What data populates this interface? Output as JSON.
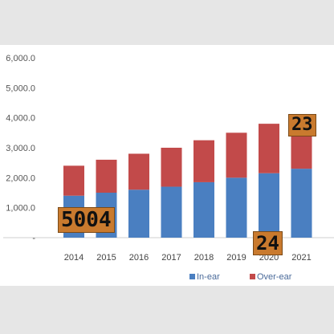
{
  "chart_data": {
    "type": "bar",
    "stacked": true,
    "categories": [
      "2014",
      "2015",
      "2016",
      "2017",
      "2018",
      "2019",
      "2020",
      "2021"
    ],
    "series": [
      {
        "name": "In-ear",
        "color": "#4a7fc1",
        "values": [
          1400,
          1500,
          1600,
          1700,
          1850,
          2000,
          2150,
          2300
        ]
      },
      {
        "name": "Over-ear",
        "color": "#c24a4a",
        "values": [
          1000,
          1100,
          1200,
          1300,
          1400,
          1500,
          1650,
          1800
        ]
      }
    ],
    "yticks": [
      "6,000.0",
      "5,000.0",
      "4,000.0",
      "3,000.0",
      "2,000.0",
      "1,000.0",
      "-"
    ],
    "ylim": [
      0,
      6000
    ],
    "grid": false,
    "legend_position": "bottom-right"
  },
  "overlay_tags": [
    "5004",
    "23",
    "24"
  ]
}
